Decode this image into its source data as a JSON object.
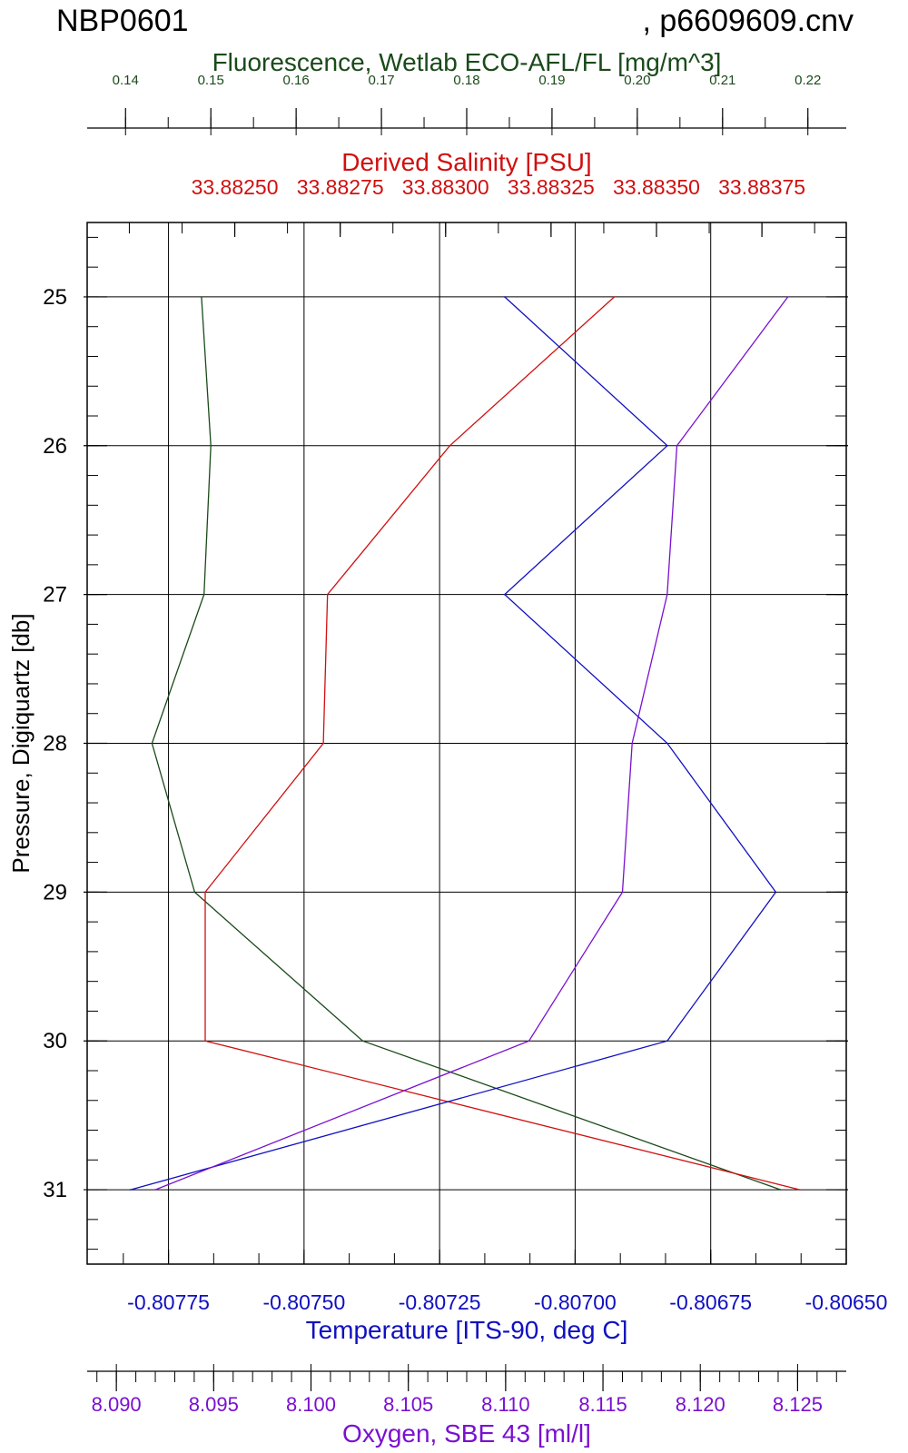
{
  "header": {
    "cruise": "NBP0601",
    "file": ", p6609609.cnv"
  },
  "colors": {
    "fluorescence": "#1a4a1a",
    "salinity": "#d01010",
    "temperature": "#1010c0",
    "oxygen": "#7a10d0",
    "grid": "#000000"
  },
  "chart_data": {
    "type": "line",
    "y_axis": {
      "label": "Pressure, Digiquartz [db]",
      "range": [
        24.5,
        31.5
      ],
      "inverted": true,
      "ticks": [
        25,
        26,
        27,
        28,
        29,
        30,
        31
      ],
      "tick_labels": [
        "25",
        "26",
        "27",
        "28",
        "29",
        "30",
        "31"
      ]
    },
    "x_axes": [
      {
        "key": "fluorescence",
        "label": "Fluorescence, Wetlab ECO-AFL/FL [mg/m^3]",
        "position": "top-outer",
        "range": [
          0.1355,
          0.2245
        ],
        "ticks": [
          0.14,
          0.15,
          0.16,
          0.17,
          0.18,
          0.19,
          0.2,
          0.21,
          0.22
        ],
        "tick_labels": [
          "0.14",
          "0.15",
          "0.16",
          "0.17",
          "0.18",
          "0.19",
          "0.20",
          "0.21",
          "0.22"
        ]
      },
      {
        "key": "salinity",
        "label": "Derived Salinity [PSU]",
        "position": "top-inner",
        "range": [
          33.88215,
          33.88395
        ],
        "ticks": [
          33.8825,
          33.88275,
          33.883,
          33.88325,
          33.8835,
          33.88375
        ],
        "tick_labels": [
          "33.88250",
          "33.88275",
          "33.88300",
          "33.88325",
          "33.88350",
          "33.88375"
        ]
      },
      {
        "key": "temperature",
        "label": "Temperature [ITS-90, deg C]",
        "position": "bottom-inner",
        "range": [
          -0.8079,
          -0.8065
        ],
        "ticks": [
          -0.80775,
          -0.8075,
          -0.80725,
          -0.807,
          -0.80675,
          -0.8065
        ],
        "tick_labels": [
          "-0.80775",
          "-0.80750",
          "-0.80725",
          "-0.80700",
          "-0.80675",
          "-0.80650"
        ]
      },
      {
        "key": "oxygen",
        "label": "Oxygen, SBE 43 [ml/l]",
        "position": "bottom-outer",
        "range": [
          8.0885,
          8.1275
        ],
        "ticks": [
          8.09,
          8.095,
          8.1,
          8.105,
          8.11,
          8.115,
          8.12,
          8.125
        ],
        "tick_labels": [
          "8.090",
          "8.095",
          "8.100",
          "8.105",
          "8.110",
          "8.115",
          "8.120",
          "8.125"
        ]
      }
    ],
    "series": [
      {
        "key": "fluorescence",
        "x": [
          0.1489,
          0.15,
          0.1492,
          0.1431,
          0.1481,
          0.1678,
          0.2168
        ],
        "y": [
          25,
          26,
          27,
          28,
          29,
          30,
          31
        ]
      },
      {
        "key": "salinity",
        "x": [
          33.8834,
          33.88301,
          33.88272,
          33.88271,
          33.88243,
          33.88243,
          33.88384
        ],
        "y": [
          25,
          26,
          27,
          28,
          29,
          30,
          31
        ]
      },
      {
        "key": "temperature",
        "x": [
          -0.80713,
          -0.80683,
          -0.80713,
          -0.80683,
          -0.80663,
          -0.80683,
          -0.80782
        ],
        "y": [
          25,
          26,
          27,
          28,
          29,
          30,
          31
        ]
      },
      {
        "key": "oxygen",
        "x": [
          8.1245,
          8.1188,
          8.1183,
          8.1165,
          8.116,
          8.1112,
          8.092
        ],
        "y": [
          25,
          26,
          27,
          28,
          29,
          30,
          31
        ]
      }
    ]
  }
}
